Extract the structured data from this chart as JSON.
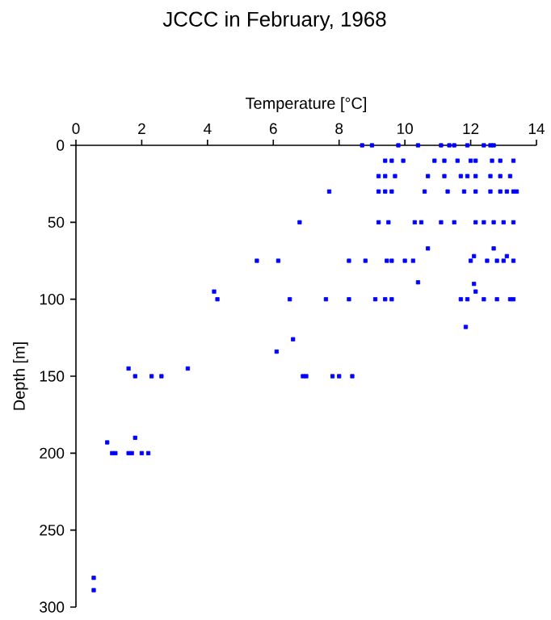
{
  "chart_data": {
    "type": "scatter",
    "title": "JCCC in February, 1968",
    "xlabel": "Temperature [°C]",
    "ylabel": "Depth [m]",
    "xlim": [
      0,
      14
    ],
    "xticks": [
      0,
      2,
      4,
      6,
      8,
      10,
      12,
      14
    ],
    "ylim": [
      300,
      0
    ],
    "yticks": [
      0,
      50,
      100,
      150,
      200,
      250,
      300
    ],
    "marker": "square",
    "series": [
      {
        "color": "#0000ff",
        "x": [
          8.7,
          9.0,
          9.8,
          10.4,
          11.1,
          11.35,
          11.5,
          11.9,
          12.4,
          12.6,
          12.7,
          9.4,
          9.6,
          9.95,
          10.9,
          11.2,
          11.6,
          12.0,
          12.15,
          12.65,
          12.9,
          13.3,
          9.2,
          9.4,
          9.7,
          10.7,
          11.2,
          11.7,
          11.9,
          12.15,
          12.6,
          12.9,
          13.2,
          7.7,
          9.2,
          9.4,
          9.6,
          10.6,
          11.3,
          11.8,
          12.15,
          12.6,
          12.9,
          13.1,
          13.3,
          13.4,
          6.8,
          9.2,
          9.5,
          10.3,
          10.5,
          11.1,
          11.5,
          12.15,
          12.4,
          12.7,
          13.0,
          13.3,
          10.7,
          12.7,
          12.1,
          13.1,
          5.5,
          6.15,
          8.3,
          8.8,
          9.45,
          9.6,
          10.0,
          10.25,
          12.0,
          12.5,
          12.8,
          13.0,
          13.3,
          10.4,
          12.1,
          4.2,
          12.15,
          4.3,
          6.5,
          7.6,
          8.3,
          9.1,
          9.4,
          9.6,
          11.7,
          11.9,
          12.4,
          12.8,
          13.2,
          13.3,
          11.85,
          6.6,
          6.1,
          1.6,
          3.4,
          1.8,
          2.3,
          2.6,
          6.9,
          7.0,
          7.8,
          8.0,
          8.4,
          1.8,
          0.95,
          1.1,
          1.2,
          1.6,
          1.7,
          2.0,
          2.2,
          0.54,
          0.54
        ],
        "values": [
          0,
          0,
          0,
          0,
          0,
          0,
          0,
          0,
          0,
          0,
          0,
          10,
          10,
          10,
          10,
          10,
          10,
          10,
          10,
          10,
          10,
          10,
          20,
          20,
          20,
          20,
          20,
          20,
          20,
          20,
          20,
          20,
          20,
          30,
          30,
          30,
          30,
          30,
          30,
          30,
          30,
          30,
          30,
          30,
          30,
          30,
          50,
          50,
          50,
          50,
          50,
          50,
          50,
          50,
          50,
          50,
          50,
          50,
          67,
          67,
          72,
          72,
          75,
          75,
          75,
          75,
          75,
          75,
          75,
          75,
          75,
          75,
          75,
          75,
          75,
          89,
          90,
          95,
          95,
          100,
          100,
          100,
          100,
          100,
          100,
          100,
          100,
          100,
          100,
          100,
          100,
          100,
          118,
          126,
          134,
          145,
          145,
          150,
          150,
          150,
          150,
          150,
          150,
          150,
          150,
          190,
          193,
          200,
          200,
          200,
          200,
          200,
          200,
          281,
          289
        ]
      }
    ]
  }
}
